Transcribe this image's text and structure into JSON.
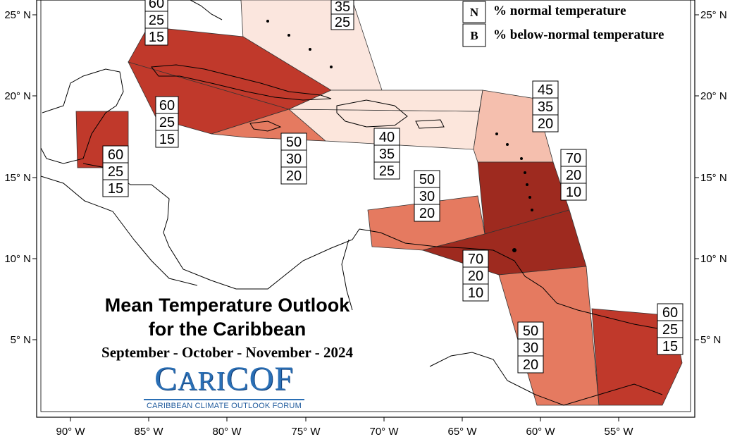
{
  "title": {
    "line1": "Mean Temperature Outlook",
    "line2": "for the Caribbean",
    "period": "September - October - November - 2024"
  },
  "logo": {
    "name_first": "C",
    "name_mid": "ARI",
    "name_last": "COF",
    "tagline": "CARIBBEAN CLIMATE OUTLOOK FORUM"
  },
  "legend": [
    {
      "key": "N",
      "text": "% normal temperature"
    },
    {
      "key": "B",
      "text": "% below-normal temperature"
    }
  ],
  "axes": {
    "lon_labels": [
      "90° W",
      "85° W",
      "80° W",
      "75° W",
      "70° W",
      "65° W",
      "60° W",
      "55° W"
    ],
    "lat_labels": [
      "25° N",
      "20° N",
      "15° N",
      "10° N",
      "5° N"
    ]
  },
  "colors": {
    "a60": "#c0392b",
    "a70": "#9e2a1f",
    "a50": "#e57a60",
    "a45": "#f5bfae",
    "a40": "#fce6dc",
    "a35": "#fbe6de"
  },
  "regions": [
    {
      "name": "Bahamas",
      "probs": [
        "35",
        "25"
      ],
      "color": "a35"
    },
    {
      "name": "Cuba",
      "probs": [
        "60",
        "25",
        "15"
      ],
      "color": "a60"
    },
    {
      "name": "Cuba West",
      "probs": [
        "60",
        "25",
        "15"
      ],
      "color": "a60"
    },
    {
      "name": "Belize",
      "probs": [
        "60",
        "25",
        "15"
      ],
      "color": "a60"
    },
    {
      "name": "Jamaica",
      "probs": [
        "50",
        "30",
        "20"
      ],
      "color": "a50"
    },
    {
      "name": "Hispaniola and Puerto Rico",
      "probs": [
        "40",
        "35",
        "25"
      ],
      "color": "a40"
    },
    {
      "name": "Leeward Islands",
      "probs": [
        "45",
        "35",
        "20"
      ],
      "color": "a45"
    },
    {
      "name": "Windward Islands",
      "probs": [
        "70",
        "20",
        "10"
      ],
      "color": "a70"
    },
    {
      "name": "ABC Islands",
      "probs": [
        "50",
        "30",
        "20"
      ],
      "color": "a50"
    },
    {
      "name": "Trinidad and Tobago",
      "probs": [
        "70",
        "20",
        "10"
      ],
      "color": "a70"
    },
    {
      "name": "Guyana",
      "probs": [
        "50",
        "30",
        "20"
      ],
      "color": "a50"
    },
    {
      "name": "Suriname and French Guiana",
      "probs": [
        "60",
        "25",
        "15"
      ],
      "color": "a60"
    }
  ]
}
